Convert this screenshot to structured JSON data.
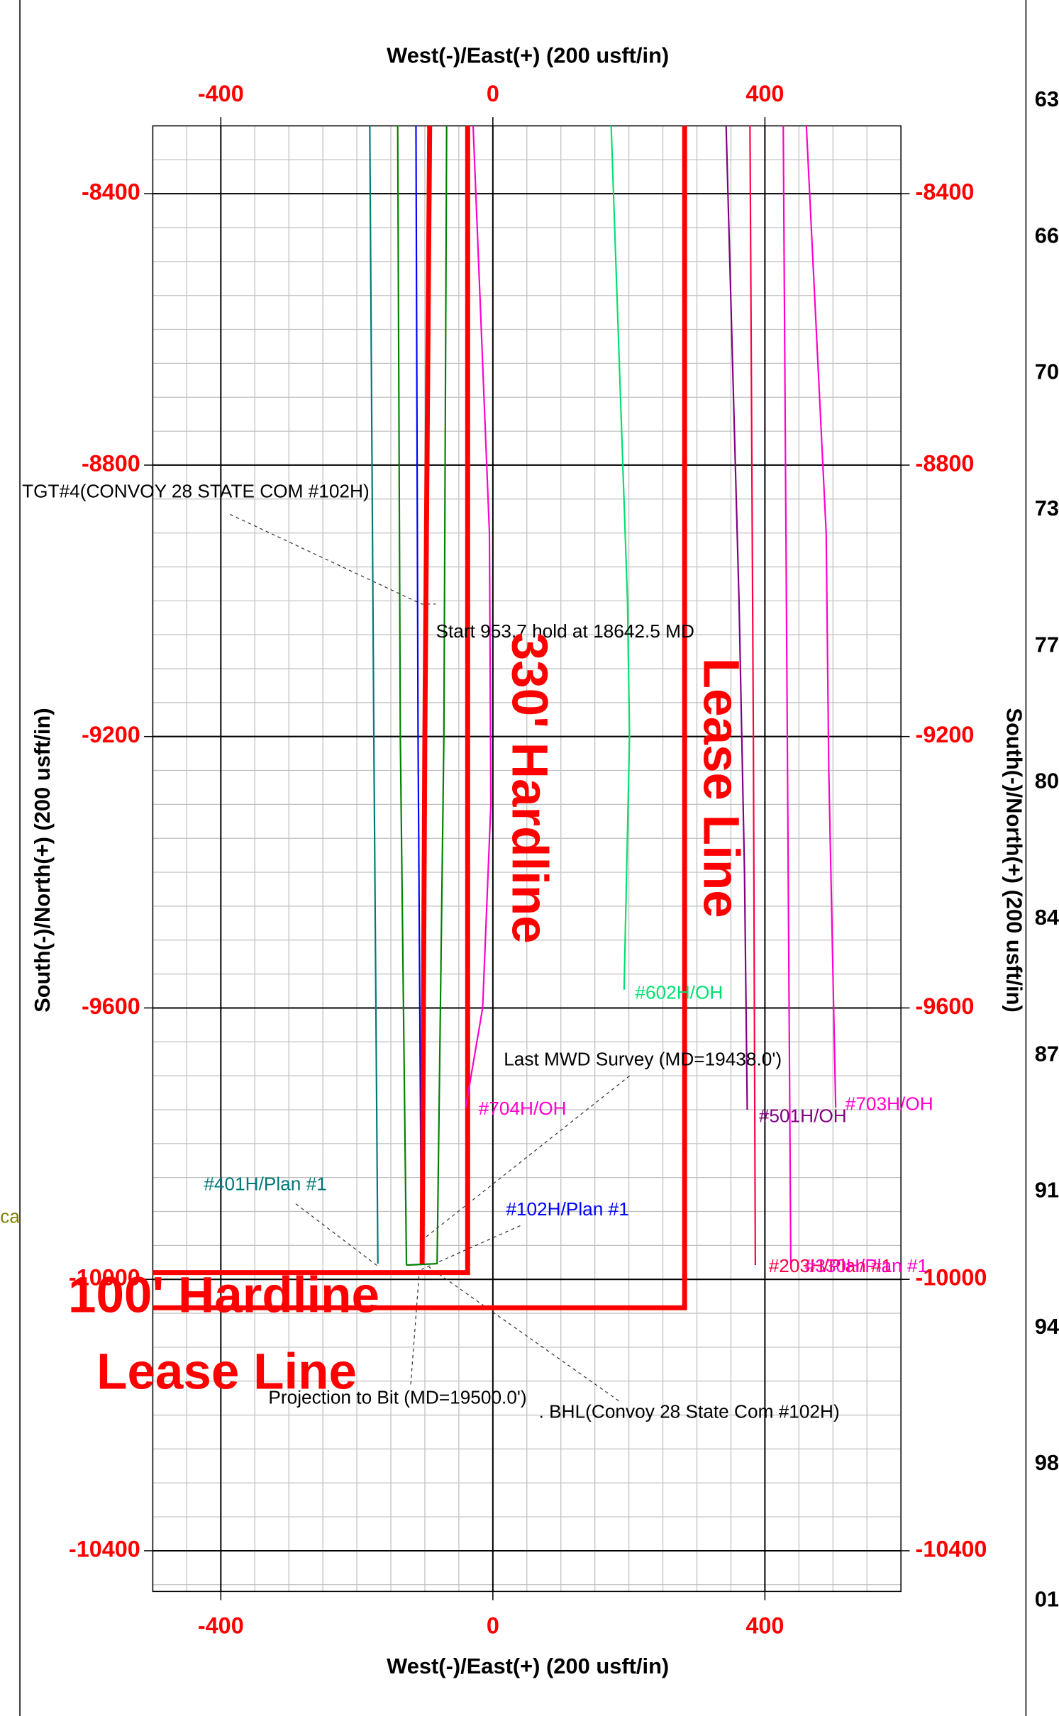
{
  "chart_data": {
    "type": "line",
    "x_title": "West(-)/East(+) (200 usft/in)",
    "y_title": "South(-)/North(+) (200 usft/in)",
    "xlim": [
      -500,
      600
    ],
    "xticks": [
      -400,
      0,
      400
    ],
    "ylim": [
      -10460,
      -8300
    ],
    "yticks": [
      -8400,
      -8800,
      -9200,
      -9600,
      -10000,
      -10400
    ],
    "grid": true,
    "tick_color": "#ff0000",
    "series": [
      {
        "name": "#401H/Plan #1",
        "color": "#007878",
        "x": [
          -181,
          -175,
          -169
        ],
        "values": [
          -8300,
          -9200,
          -9977
        ]
      },
      {
        "color": "#008000",
        "x": [
          -140,
          -136,
          -127,
          -127
        ],
        "values": [
          -8300,
          -9200,
          -9977,
          -9979
        ]
      },
      {
        "color": "#008000",
        "x": [
          -68,
          -72,
          -82,
          -127
        ],
        "values": [
          -8300,
          -9200,
          -9977,
          -9979
        ]
      },
      {
        "name": "#102H/Plan #1",
        "color": "#0000ff",
        "x": [
          -113,
          -110,
          -105
        ],
        "values": [
          -8300,
          -9200,
          -9977
        ]
      },
      {
        "color": "#ff0000",
        "thick": true,
        "x": [
          -93,
          -100,
          -104
        ],
        "values": [
          -8300,
          -9200,
          -9977
        ]
      },
      {
        "color": "#ff0000",
        "thick": true,
        "x": [
          -37,
          -37,
          -500
        ],
        "values": [
          -8300,
          -9990,
          -9990
        ]
      },
      {
        "color": "#ff0000",
        "thick": true,
        "x": [
          282,
          282,
          -500
        ],
        "values": [
          -8300,
          -10042,
          -10042
        ]
      },
      {
        "name": "#704H/OH",
        "color": "#ff00cc",
        "x": [
          -29,
          -5,
          -3,
          -15,
          -40
        ],
        "values": [
          -8300,
          -8900,
          -9300,
          -9600,
          -9747
        ]
      },
      {
        "name": "#602H/OH",
        "color": "#00e070",
        "x": [
          174,
          198,
          201,
          193
        ],
        "values": [
          -8300,
          -9000,
          -9200,
          -9573
        ]
      },
      {
        "name": "#501H/OH",
        "color": "#800080",
        "x": [
          343,
          362,
          370,
          374
        ],
        "values": [
          -8300,
          -9000,
          -9400,
          -9750
        ]
      },
      {
        "name": "#203H/Plan #1",
        "color": "#ff0040",
        "x": [
          378,
          383,
          386
        ],
        "values": [
          -8300,
          -9200,
          -9979
        ]
      },
      {
        "name": "#330H/Plan #1",
        "color": "#ff00cc",
        "x": [
          427,
          433,
          438
        ],
        "values": [
          -8300,
          -9200,
          -9979
        ]
      },
      {
        "name": "#703H/OH",
        "color": "#ff00cc",
        "x": [
          461,
          490,
          494,
          504
        ],
        "values": [
          -8300,
          -8900,
          -9250,
          -9747
        ]
      }
    ],
    "annotations": [
      "TGT#4(CONVOY 28 STATE COM #102H)",
      "Start 953.7 hold at 18642.5 MD",
      "Last MWD Survey (MD=19438.0')",
      "Projection to Bit  (MD=19500.0')",
      ". BHL(Convoy 28 State Com #102H)"
    ],
    "big_labels": [
      "330' Hardline",
      "Lease Line",
      "100' Hardline",
      "Lease Line"
    ],
    "cut_left_text": "ca",
    "cut_right_labels": [
      "63",
      "66",
      "70",
      "73",
      "77",
      "80",
      "84",
      "87",
      "91",
      "94",
      "98",
      "01"
    ]
  }
}
